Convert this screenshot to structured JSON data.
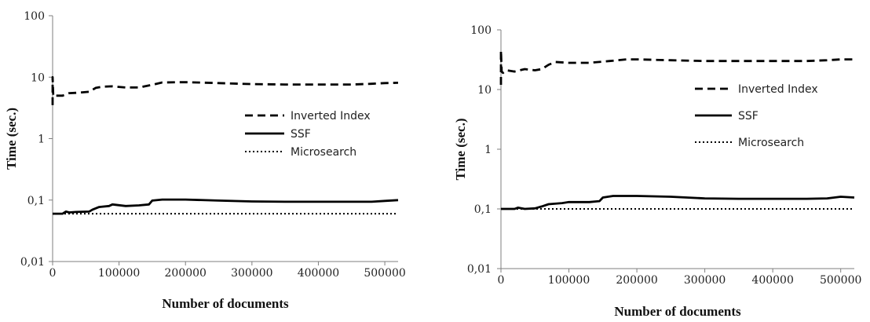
{
  "chart_data": [
    {
      "type": "line",
      "title": "",
      "xlabel": "Number of documents",
      "ylabel": "Time (sec.)",
      "y_scale": "log",
      "ylim": [
        0.01,
        100
      ],
      "xlim": [
        0,
        520000
      ],
      "x_ticks": [
        "0",
        "100000",
        "200000",
        "300000",
        "400000",
        "500000"
      ],
      "y_ticks": [
        "0,01",
        "0,1",
        "1",
        "10",
        "100"
      ],
      "legend_position": "right",
      "grid": false,
      "series": [
        {
          "name": "Inverted Index",
          "style": "dashed",
          "color": "#000000",
          "x": [
            0,
            0,
            1000,
            3000,
            5000,
            15000,
            25000,
            40000,
            55000,
            65000,
            75000,
            90000,
            110000,
            130000,
            150000,
            165000,
            200000,
            250000,
            300000,
            350000,
            400000,
            450000,
            480000,
            500000,
            520000
          ],
          "y": [
            3.5,
            10,
            5,
            4.8,
            5,
            5,
            5.5,
            5.6,
            5.8,
            6.7,
            7,
            7.1,
            6.8,
            6.8,
            7.5,
            8.2,
            8.3,
            8,
            7.7,
            7.6,
            7.6,
            7.6,
            7.8,
            8,
            8.1
          ]
        },
        {
          "name": "SSF",
          "style": "solid",
          "color": "#000000",
          "x": [
            0,
            15000,
            20000,
            25000,
            35000,
            55000,
            60000,
            70000,
            85000,
            90000,
            110000,
            130000,
            145000,
            150000,
            165000,
            200000,
            250000,
            300000,
            350000,
            400000,
            450000,
            480000,
            500000,
            520000
          ],
          "y": [
            0.06,
            0.06,
            0.065,
            0.063,
            0.064,
            0.065,
            0.07,
            0.077,
            0.08,
            0.085,
            0.08,
            0.082,
            0.085,
            0.098,
            0.102,
            0.102,
            0.098,
            0.095,
            0.094,
            0.094,
            0.094,
            0.094,
            0.097,
            0.1
          ]
        },
        {
          "name": "Microsearch",
          "style": "dotted",
          "color": "#000000",
          "x": [
            0,
            520000
          ],
          "y": [
            0.06,
            0.06
          ]
        }
      ]
    },
    {
      "type": "line",
      "title": "",
      "xlabel": "Number of documents",
      "ylabel": "Time (sec.)",
      "y_scale": "log",
      "ylim": [
        0.01,
        100
      ],
      "xlim": [
        0,
        520000
      ],
      "x_ticks": [
        "0",
        "100000",
        "200000",
        "300000",
        "400000",
        "500000"
      ],
      "y_ticks": [
        "0,01",
        "0,1",
        "1",
        "10",
        "100"
      ],
      "legend_position": "right",
      "grid": false,
      "series": [
        {
          "name": "Inverted Index",
          "style": "dashed",
          "color": "#000000",
          "x": [
            0,
            0,
            1000,
            3000,
            8000,
            20000,
            35000,
            50000,
            60000,
            70000,
            80000,
            100000,
            130000,
            160000,
            185000,
            200000,
            250000,
            300000,
            350000,
            400000,
            450000,
            480000,
            500000,
            520000
          ],
          "y": [
            12,
            45,
            20,
            19,
            21,
            20,
            22,
            21,
            22,
            26,
            29,
            28,
            28,
            30,
            32,
            32,
            31,
            30,
            30,
            30,
            30,
            31,
            32,
            32
          ]
        },
        {
          "name": "SSF",
          "style": "solid",
          "color": "#000000",
          "x": [
            0,
            20000,
            25000,
            35000,
            50000,
            60000,
            70000,
            90000,
            100000,
            130000,
            145000,
            150000,
            165000,
            200000,
            250000,
            300000,
            350000,
            400000,
            450000,
            480000,
            500000,
            520000
          ],
          "y": [
            0.1,
            0.1,
            0.105,
            0.1,
            0.102,
            0.11,
            0.12,
            0.125,
            0.13,
            0.13,
            0.135,
            0.155,
            0.165,
            0.165,
            0.16,
            0.15,
            0.148,
            0.148,
            0.148,
            0.15,
            0.16,
            0.155
          ]
        },
        {
          "name": "Microsearch",
          "style": "dotted",
          "color": "#000000",
          "x": [
            0,
            520000
          ],
          "y": [
            0.1,
            0.1
          ]
        }
      ]
    }
  ]
}
